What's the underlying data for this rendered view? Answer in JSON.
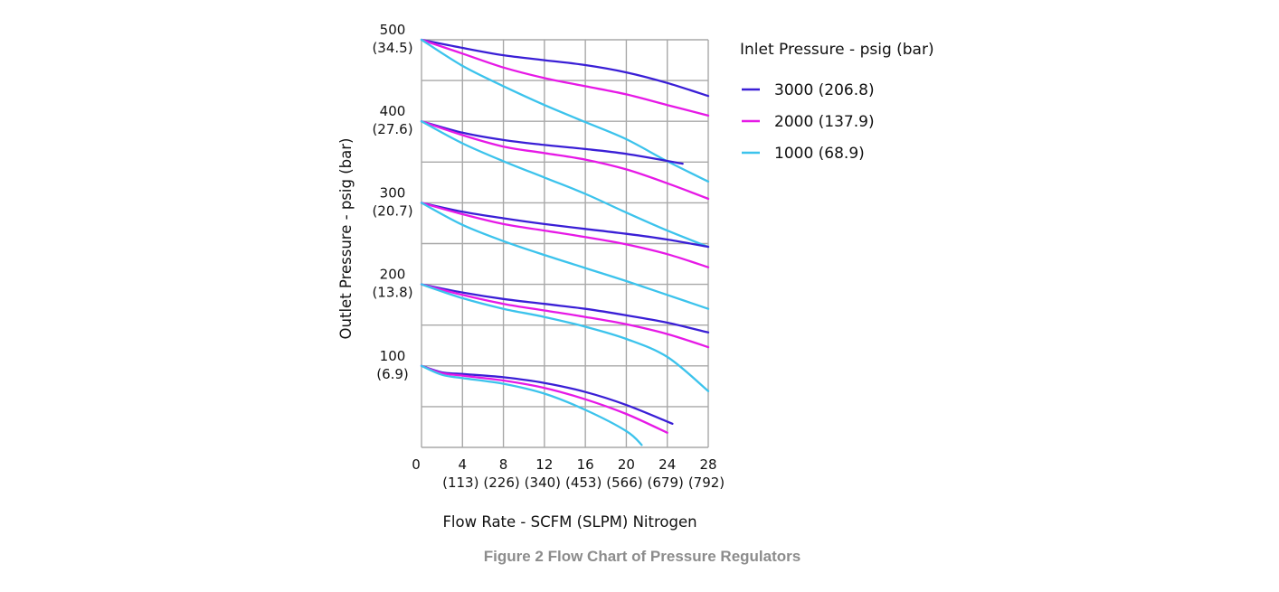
{
  "caption": "Figure 2 Flow Chart of Pressure Regulators",
  "chart_data": {
    "type": "line",
    "title": "",
    "xlabel": "Flow Rate - SCFM (SLPM) Nitrogen",
    "ylabel": "Outlet Pressure - psig (bar)",
    "xlim": [
      0,
      28
    ],
    "ylim": [
      0,
      500
    ],
    "grid": true,
    "x_ticks": [
      {
        "value": 0,
        "label": "0",
        "sublabel": ""
      },
      {
        "value": 4,
        "label": "4",
        "sublabel": "(113)"
      },
      {
        "value": 8,
        "label": "8",
        "sublabel": "(226)"
      },
      {
        "value": 12,
        "label": "12",
        "sublabel": "(340)"
      },
      {
        "value": 16,
        "label": "16",
        "sublabel": "(453)"
      },
      {
        "value": 20,
        "label": "20",
        "sublabel": "(566)"
      },
      {
        "value": 24,
        "label": "24",
        "sublabel": "(679)"
      },
      {
        "value": 28,
        "label": "28",
        "sublabel": "(792)"
      }
    ],
    "y_ticks": [
      {
        "value": 500,
        "label": "500",
        "sublabel": "(34.5)"
      },
      {
        "value": 400,
        "label": "400",
        "sublabel": "(27.6)"
      },
      {
        "value": 300,
        "label": "300",
        "sublabel": "(20.7)"
      },
      {
        "value": 200,
        "label": "200",
        "sublabel": "(13.8)"
      },
      {
        "value": 100,
        "label": "100",
        "sublabel": "(6.9)"
      }
    ],
    "legend": {
      "title": "Inlet Pressure - psig (bar)",
      "position": "right",
      "entries": [
        {
          "name": "3000 (206.8)",
          "color": "#3a1fd6"
        },
        {
          "name": "2000 (137.9)",
          "color": "#e619e6"
        },
        {
          "name": "1000 (68.9)",
          "color": "#3cc3ec"
        }
      ]
    },
    "series": [
      {
        "name": "3000 (206.8)",
        "setpoint": 500,
        "points": [
          [
            0,
            500
          ],
          [
            4,
            490
          ],
          [
            8,
            481
          ],
          [
            12,
            475
          ],
          [
            16,
            469
          ],
          [
            20,
            460
          ],
          [
            24,
            447
          ],
          [
            28,
            431
          ]
        ]
      },
      {
        "name": "2000 (137.9)",
        "setpoint": 500,
        "points": [
          [
            0,
            500
          ],
          [
            4,
            483
          ],
          [
            8,
            466
          ],
          [
            12,
            453
          ],
          [
            16,
            443
          ],
          [
            20,
            433
          ],
          [
            24,
            420
          ],
          [
            28,
            407
          ]
        ]
      },
      {
        "name": "1000 (68.9)",
        "setpoint": 500,
        "points": [
          [
            0,
            500
          ],
          [
            4,
            468
          ],
          [
            8,
            443
          ],
          [
            12,
            420
          ],
          [
            16,
            399
          ],
          [
            20,
            378
          ],
          [
            24,
            351
          ],
          [
            28,
            326
          ]
        ]
      },
      {
        "name": "3000 (206.8)",
        "setpoint": 400,
        "points": [
          [
            0,
            400
          ],
          [
            4,
            386
          ],
          [
            8,
            377
          ],
          [
            12,
            371
          ],
          [
            16,
            366
          ],
          [
            20,
            360
          ],
          [
            25.5,
            348
          ]
        ]
      },
      {
        "name": "2000 (137.9)",
        "setpoint": 400,
        "points": [
          [
            0,
            400
          ],
          [
            4,
            383
          ],
          [
            8,
            369
          ],
          [
            12,
            361
          ],
          [
            16,
            353
          ],
          [
            20,
            341
          ],
          [
            24,
            324
          ],
          [
            28,
            305
          ]
        ]
      },
      {
        "name": "1000 (68.9)",
        "setpoint": 400,
        "points": [
          [
            0,
            400
          ],
          [
            4,
            373
          ],
          [
            8,
            351
          ],
          [
            12,
            331
          ],
          [
            16,
            311
          ],
          [
            20,
            288
          ],
          [
            24,
            266
          ],
          [
            28,
            246
          ]
        ]
      },
      {
        "name": "3000 (206.8)",
        "setpoint": 300,
        "points": [
          [
            0,
            300
          ],
          [
            4,
            289
          ],
          [
            8,
            281
          ],
          [
            12,
            274
          ],
          [
            16,
            268
          ],
          [
            20,
            262
          ],
          [
            24,
            255
          ],
          [
            28,
            246
          ]
        ]
      },
      {
        "name": "2000 (137.9)",
        "setpoint": 300,
        "points": [
          [
            0,
            300
          ],
          [
            4,
            286
          ],
          [
            8,
            274
          ],
          [
            12,
            266
          ],
          [
            16,
            258
          ],
          [
            20,
            249
          ],
          [
            24,
            237
          ],
          [
            28,
            221
          ]
        ]
      },
      {
        "name": "1000 (68.9)",
        "setpoint": 300,
        "points": [
          [
            0,
            300
          ],
          [
            4,
            273
          ],
          [
            8,
            253
          ],
          [
            12,
            236
          ],
          [
            16,
            220
          ],
          [
            20,
            204
          ],
          [
            24,
            187
          ],
          [
            28,
            170
          ]
        ]
      },
      {
        "name": "3000 (206.8)",
        "setpoint": 200,
        "points": [
          [
            0,
            200
          ],
          [
            4,
            190
          ],
          [
            8,
            182
          ],
          [
            12,
            176
          ],
          [
            16,
            170
          ],
          [
            20,
            162
          ],
          [
            24,
            153
          ],
          [
            28,
            141
          ]
        ]
      },
      {
        "name": "2000 (137.9)",
        "setpoint": 200,
        "points": [
          [
            0,
            200
          ],
          [
            4,
            187
          ],
          [
            8,
            176
          ],
          [
            12,
            168
          ],
          [
            16,
            160
          ],
          [
            20,
            151
          ],
          [
            24,
            139
          ],
          [
            28,
            123
          ]
        ]
      },
      {
        "name": "1000 (68.9)",
        "setpoint": 200,
        "points": [
          [
            0,
            200
          ],
          [
            4,
            183
          ],
          [
            8,
            170
          ],
          [
            12,
            160
          ],
          [
            16,
            148
          ],
          [
            20,
            133
          ],
          [
            24,
            111
          ],
          [
            28,
            69
          ]
        ]
      },
      {
        "name": "3000 (206.8)",
        "setpoint": 100,
        "points": [
          [
            0,
            100
          ],
          [
            2,
            92
          ],
          [
            4,
            90
          ],
          [
            8,
            86
          ],
          [
            12,
            79
          ],
          [
            16,
            68
          ],
          [
            20,
            52
          ],
          [
            24.5,
            29
          ]
        ]
      },
      {
        "name": "2000 (137.9)",
        "setpoint": 100,
        "points": [
          [
            0,
            100
          ],
          [
            2,
            91
          ],
          [
            4,
            88
          ],
          [
            8,
            82
          ],
          [
            12,
            73
          ],
          [
            16,
            59
          ],
          [
            20,
            41
          ],
          [
            24,
            18
          ]
        ]
      },
      {
        "name": "1000 (68.9)",
        "setpoint": 100,
        "points": [
          [
            0,
            100
          ],
          [
            2,
            89
          ],
          [
            4,
            85
          ],
          [
            8,
            78
          ],
          [
            12,
            66
          ],
          [
            16,
            46
          ],
          [
            20,
            20
          ],
          [
            21.5,
            3
          ]
        ]
      }
    ]
  }
}
